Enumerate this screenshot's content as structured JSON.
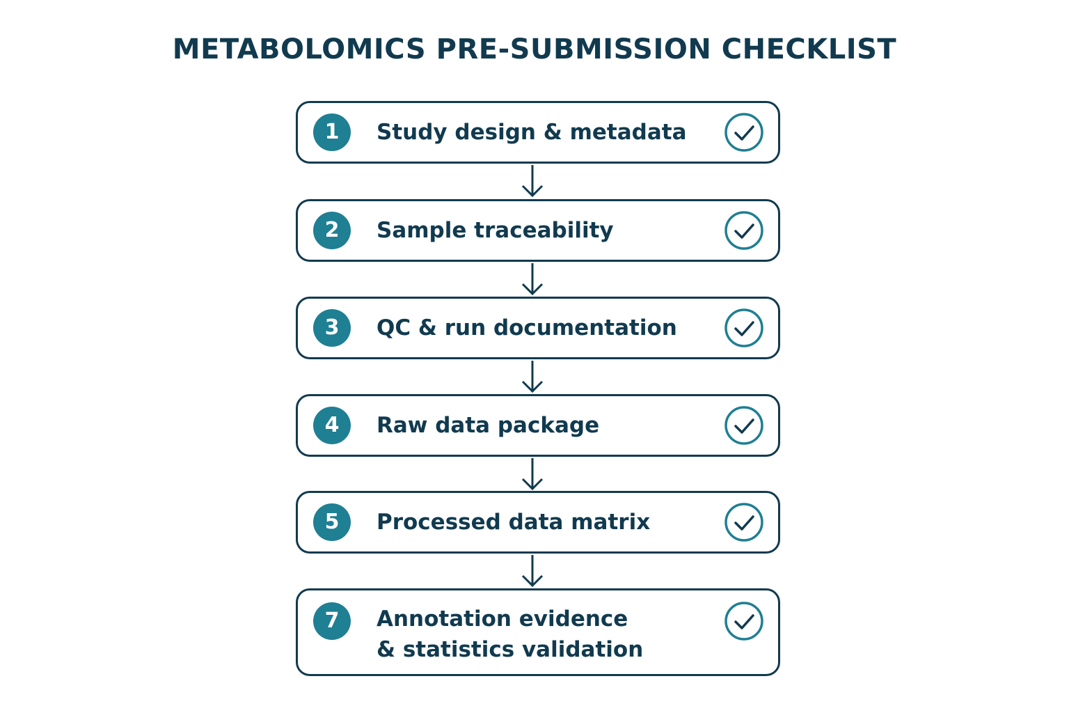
{
  "title": "METABOLOMICS PRE-SUBMISSION CHECKLIST",
  "colors": {
    "ink": "#113a4f",
    "accent": "#1f7f93",
    "background": "#ffffff"
  },
  "steps": [
    {
      "number": "1",
      "lines": [
        "Study design & metadata"
      ],
      "status": "check-circle-icon"
    },
    {
      "number": "2",
      "lines": [
        "Sample traceability"
      ],
      "status": "check-circle-icon"
    },
    {
      "number": "3",
      "lines": [
        "QC & run documentation"
      ],
      "status": "check-circle-icon"
    },
    {
      "number": "4",
      "lines": [
        "Raw data package"
      ],
      "status": "check-circle-icon"
    },
    {
      "number": "5",
      "lines": [
        "Processed data matrix"
      ],
      "status": "check-circle-icon"
    },
    {
      "number": "7",
      "lines": [
        "Annotation evidence",
        "& statistics validation"
      ],
      "status": "check-circle-icon"
    }
  ]
}
